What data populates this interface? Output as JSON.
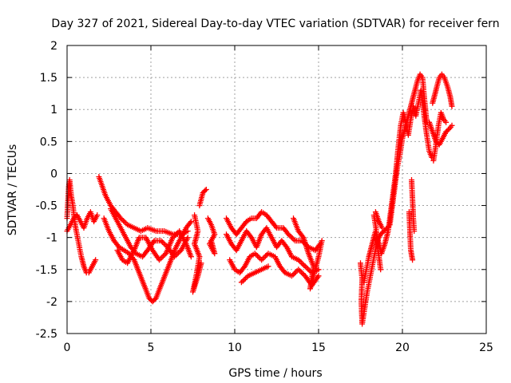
{
  "chart_data": {
    "type": "scatter",
    "title": "Day 327 of 2021, Sidereal Day-to-day VTEC variation (SDTVAR) for receiver fern",
    "xlabel": "GPS time / hours",
    "ylabel": "SDTVAR / TECUs",
    "xlim": [
      0,
      25
    ],
    "ylim": [
      -2.5,
      2
    ],
    "xticks": [
      "0",
      "5",
      "10",
      "15",
      "20",
      "25"
    ],
    "yticks": [
      "-2.5",
      "-2",
      "-1.5",
      "-1",
      "-0.5",
      "0",
      "0.5",
      "1",
      "1.5",
      "2"
    ],
    "grid": true,
    "marker": "plus",
    "colors": {
      "series": "#ff0000"
    },
    "series": [
      {
        "segments": [
          [
            [
              0.0,
              -0.7
            ],
            [
              0.1,
              -0.2
            ],
            [
              0.15,
              -0.1
            ],
            [
              0.25,
              -0.35
            ],
            [
              0.35,
              -0.5
            ],
            [
              0.45,
              -0.75
            ],
            [
              0.55,
              -0.9
            ],
            [
              0.7,
              -1.1
            ],
            [
              0.85,
              -1.3
            ],
            [
              1.0,
              -1.45
            ],
            [
              1.15,
              -1.55
            ],
            [
              1.3,
              -1.55
            ],
            [
              1.5,
              -1.45
            ],
            [
              1.7,
              -1.35
            ]
          ],
          [
            [
              0.0,
              -0.9
            ],
            [
              0.2,
              -0.8
            ],
            [
              0.4,
              -0.7
            ],
            [
              0.6,
              -0.65
            ],
            [
              0.8,
              -0.75
            ],
            [
              1.0,
              -0.85
            ],
            [
              1.2,
              -0.7
            ],
            [
              1.4,
              -0.6
            ],
            [
              1.6,
              -0.75
            ],
            [
              1.8,
              -0.65
            ]
          ],
          [
            [
              1.9,
              -0.05
            ],
            [
              2.1,
              -0.2
            ],
            [
              2.3,
              -0.35
            ],
            [
              2.6,
              -0.5
            ],
            [
              2.9,
              -0.6
            ],
            [
              3.2,
              -0.7
            ],
            [
              3.6,
              -0.8
            ],
            [
              4.0,
              -0.85
            ],
            [
              4.4,
              -0.9
            ],
            [
              4.8,
              -0.85
            ],
            [
              5.3,
              -0.9
            ],
            [
              5.8,
              -0.9
            ],
            [
              6.3,
              -0.95
            ],
            [
              6.8,
              -0.95
            ],
            [
              7.2,
              -0.9
            ]
          ],
          [
            [
              2.2,
              -0.7
            ],
            [
              2.5,
              -0.9
            ],
            [
              2.8,
              -1.05
            ],
            [
              3.1,
              -1.15
            ],
            [
              3.4,
              -1.2
            ],
            [
              3.7,
              -1.25
            ],
            [
              4.0,
              -1.35
            ],
            [
              4.3,
              -1.55
            ],
            [
              4.6,
              -1.75
            ],
            [
              4.9,
              -1.95
            ],
            [
              5.1,
              -2.0
            ],
            [
              5.3,
              -1.95
            ],
            [
              5.6,
              -1.75
            ],
            [
              5.9,
              -1.55
            ],
            [
              6.2,
              -1.35
            ],
            [
              6.5,
              -1.15
            ],
            [
              6.8,
              -1.0
            ],
            [
              7.1,
              -0.85
            ],
            [
              7.4,
              -0.75
            ]
          ],
          [
            [
              2.6,
              -0.55
            ],
            [
              2.9,
              -0.7
            ],
            [
              3.2,
              -0.85
            ],
            [
              3.5,
              -1.0
            ],
            [
              3.8,
              -1.15
            ],
            [
              4.1,
              -1.25
            ],
            [
              4.5,
              -1.3
            ],
            [
              4.8,
              -1.2
            ],
            [
              5.2,
              -1.05
            ],
            [
              5.6,
              -1.05
            ],
            [
              6.0,
              -1.15
            ],
            [
              6.4,
              -1.3
            ],
            [
              6.8,
              -1.2
            ],
            [
              7.2,
              -1.0
            ]
          ],
          [
            [
              3.0,
              -1.2
            ],
            [
              3.3,
              -1.35
            ],
            [
              3.6,
              -1.4
            ],
            [
              4.0,
              -1.2
            ],
            [
              4.3,
              -1.0
            ],
            [
              4.7,
              -1.0
            ],
            [
              5.1,
              -1.2
            ],
            [
              5.5,
              -1.35
            ],
            [
              5.9,
              -1.25
            ],
            [
              6.3,
              -1.0
            ],
            [
              6.7,
              -0.9
            ],
            [
              7.1,
              -1.1
            ],
            [
              7.4,
              -1.3
            ]
          ],
          [
            [
              7.6,
              -0.65
            ],
            [
              7.8,
              -0.9
            ],
            [
              7.6,
              -1.1
            ],
            [
              7.9,
              -1.3
            ],
            [
              7.7,
              -1.6
            ],
            [
              7.5,
              -1.85
            ],
            [
              7.8,
              -1.6
            ],
            [
              8.0,
              -1.4
            ]
          ],
          [
            [
              7.9,
              -0.5
            ],
            [
              8.1,
              -0.3
            ],
            [
              8.3,
              -0.25
            ]
          ],
          [
            [
              8.4,
              -0.7
            ],
            [
              8.6,
              -0.8
            ],
            [
              8.8,
              -0.95
            ],
            [
              8.5,
              -1.1
            ],
            [
              8.8,
              -1.25
            ],
            [
              8.6,
              -1.05
            ]
          ],
          [
            [
              9.5,
              -0.7
            ],
            [
              9.8,
              -0.85
            ],
            [
              10.1,
              -0.95
            ],
            [
              10.4,
              -0.85
            ],
            [
              10.7,
              -0.75
            ],
            [
              11.0,
              -0.7
            ],
            [
              11.3,
              -0.7
            ],
            [
              11.6,
              -0.6
            ],
            [
              11.9,
              -0.65
            ],
            [
              12.2,
              -0.75
            ],
            [
              12.5,
              -0.85
            ],
            [
              12.9,
              -0.85
            ],
            [
              13.2,
              -0.95
            ],
            [
              13.6,
              -1.05
            ],
            [
              14.0,
              -1.05
            ],
            [
              14.4,
              -1.15
            ],
            [
              14.8,
              -1.2
            ],
            [
              15.1,
              -1.1
            ]
          ],
          [
            [
              9.5,
              -0.95
            ],
            [
              9.8,
              -1.1
            ],
            [
              10.1,
              -1.2
            ],
            [
              10.4,
              -1.05
            ],
            [
              10.7,
              -0.9
            ],
            [
              11.0,
              -1.0
            ],
            [
              11.3,
              -1.15
            ],
            [
              11.6,
              -0.95
            ],
            [
              11.9,
              -0.85
            ],
            [
              12.2,
              -1.0
            ],
            [
              12.5,
              -1.15
            ],
            [
              12.8,
              -1.05
            ],
            [
              13.1,
              -1.15
            ],
            [
              13.4,
              -1.3
            ],
            [
              13.8,
              -1.35
            ],
            [
              14.2,
              -1.45
            ],
            [
              14.6,
              -1.55
            ],
            [
              15.0,
              -1.5
            ]
          ],
          [
            [
              9.7,
              -1.35
            ],
            [
              10.0,
              -1.5
            ],
            [
              10.3,
              -1.55
            ],
            [
              10.6,
              -1.45
            ],
            [
              10.9,
              -1.3
            ],
            [
              11.2,
              -1.25
            ],
            [
              11.6,
              -1.35
            ],
            [
              12.0,
              -1.25
            ],
            [
              12.4,
              -1.3
            ],
            [
              12.7,
              -1.45
            ],
            [
              13.0,
              -1.55
            ],
            [
              13.4,
              -1.6
            ],
            [
              13.8,
              -1.5
            ],
            [
              14.2,
              -1.6
            ],
            [
              14.6,
              -1.75
            ],
            [
              15.0,
              -1.6
            ]
          ],
          [
            [
              10.4,
              -1.7
            ],
            [
              10.8,
              -1.6
            ],
            [
              11.2,
              -1.55
            ],
            [
              11.6,
              -1.5
            ],
            [
              12.0,
              -1.45
            ]
          ],
          [
            [
              13.5,
              -0.7
            ],
            [
              13.8,
              -0.9
            ],
            [
              14.1,
              -1.0
            ],
            [
              14.4,
              -1.25
            ],
            [
              14.7,
              -1.45
            ],
            [
              14.5,
              -1.8
            ],
            [
              15.0,
              -1.3
            ],
            [
              15.2,
              -1.05
            ]
          ],
          [
            [
              17.5,
              -1.4
            ],
            [
              17.6,
              -1.65
            ],
            [
              17.55,
              -2.0
            ],
            [
              17.6,
              -2.35
            ],
            [
              17.75,
              -2.1
            ],
            [
              17.9,
              -1.85
            ],
            [
              18.05,
              -1.65
            ],
            [
              18.2,
              -1.45
            ],
            [
              18.35,
              -1.25
            ],
            [
              18.5,
              -1.05
            ],
            [
              18.7,
              -0.95
            ],
            [
              18.9,
              -0.9
            ],
            [
              19.1,
              -0.85
            ],
            [
              19.25,
              -0.8
            ],
            [
              19.4,
              -0.5
            ],
            [
              19.55,
              -0.2
            ],
            [
              19.7,
              0.1
            ],
            [
              19.85,
              0.3
            ],
            [
              20.0,
              0.55
            ],
            [
              20.15,
              0.7
            ],
            [
              20.3,
              0.85
            ],
            [
              20.45,
              1.0
            ],
            [
              20.6,
              1.15
            ],
            [
              20.75,
              1.3
            ],
            [
              20.9,
              1.45
            ],
            [
              21.05,
              1.55
            ],
            [
              21.2,
              1.5
            ],
            [
              21.3,
              1.2
            ],
            [
              21.45,
              0.8
            ]
          ],
          [
            [
              17.7,
              -1.7
            ],
            [
              17.85,
              -1.5
            ],
            [
              18.0,
              -1.3
            ],
            [
              18.2,
              -1.1
            ],
            [
              18.4,
              -0.9
            ],
            [
              18.55,
              -1.05
            ],
            [
              18.75,
              -1.25
            ],
            [
              18.95,
              -1.1
            ],
            [
              19.15,
              -0.9
            ],
            [
              19.3,
              -0.6
            ],
            [
              19.45,
              -0.3
            ],
            [
              19.6,
              0.0
            ],
            [
              19.75,
              0.4
            ],
            [
              19.9,
              0.75
            ],
            [
              20.05,
              0.95
            ],
            [
              20.2,
              0.8
            ],
            [
              20.35,
              0.6
            ],
            [
              20.5,
              0.85
            ],
            [
              20.65,
              1.05
            ],
            [
              20.8,
              0.9
            ],
            [
              20.95,
              1.1
            ],
            [
              21.1,
              1.3
            ],
            [
              21.25,
              1.0
            ],
            [
              21.45,
              0.6
            ],
            [
              21.6,
              0.35
            ],
            [
              21.75,
              0.25
            ]
          ],
          [
            [
              18.3,
              -0.65
            ],
            [
              18.45,
              -0.9
            ],
            [
              18.55,
              -1.2
            ],
            [
              18.7,
              -1.5
            ]
          ],
          [
            [
              18.4,
              -0.6
            ],
            [
              18.6,
              -0.75
            ],
            [
              18.8,
              -0.85
            ]
          ],
          [
            [
              20.4,
              -0.6
            ],
            [
              20.45,
              -0.9
            ],
            [
              20.5,
              -1.2
            ],
            [
              20.6,
              -1.35
            ]
          ],
          [
            [
              20.55,
              -0.1
            ],
            [
              20.6,
              -0.4
            ],
            [
              20.65,
              -0.7
            ],
            [
              20.7,
              -0.9
            ]
          ],
          [
            [
              21.6,
              0.8
            ],
            [
              21.8,
              0.65
            ],
            [
              22.0,
              0.5
            ],
            [
              22.2,
              0.45
            ],
            [
              22.4,
              0.55
            ],
            [
              22.6,
              0.65
            ],
            [
              22.8,
              0.7
            ],
            [
              22.95,
              0.75
            ]
          ],
          [
            [
              21.8,
              1.1
            ],
            [
              22.0,
              1.3
            ],
            [
              22.2,
              1.5
            ],
            [
              22.35,
              1.55
            ],
            [
              22.5,
              1.5
            ],
            [
              22.7,
              1.35
            ],
            [
              22.85,
              1.2
            ],
            [
              22.95,
              1.05
            ]
          ],
          [
            [
              21.85,
              0.2
            ],
            [
              22.0,
              0.45
            ],
            [
              22.15,
              0.75
            ],
            [
              22.3,
              0.95
            ],
            [
              22.45,
              0.85
            ],
            [
              22.6,
              0.8
            ]
          ]
        ]
      }
    ]
  }
}
